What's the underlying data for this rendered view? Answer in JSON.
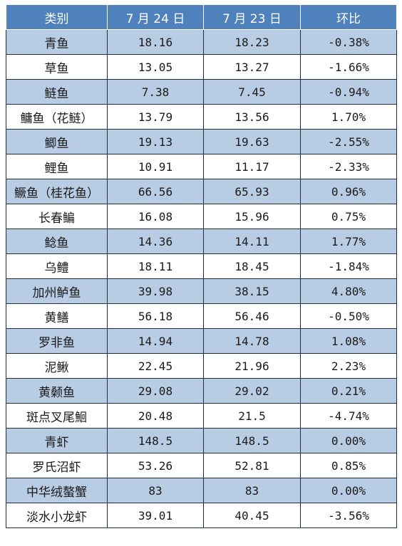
{
  "table": {
    "headers": [
      "类别",
      "7 月 24 日",
      "7 月 23 日",
      "环比"
    ],
    "rows": [
      [
        "青鱼",
        "18.16",
        "18.23",
        "-0.38%"
      ],
      [
        "草鱼",
        "13.05",
        "13.27",
        "-1.66%"
      ],
      [
        "鲢鱼",
        "7.38",
        "7.45",
        "-0.94%"
      ],
      [
        "鳙鱼（花鲢）",
        "13.79",
        "13.56",
        "1.70%"
      ],
      [
        "鲫鱼",
        "19.13",
        "19.63",
        "-2.55%"
      ],
      [
        "鲤鱼",
        "10.91",
        "11.17",
        "-2.33%"
      ],
      [
        "鳜鱼（桂花鱼）",
        "66.56",
        "65.93",
        "0.96%"
      ],
      [
        "长春鳊",
        "16.08",
        "15.96",
        "0.75%"
      ],
      [
        "鲶鱼",
        "14.36",
        "14.11",
        "1.77%"
      ],
      [
        "乌鳢",
        "18.11",
        "18.45",
        "-1.84%"
      ],
      [
        "加州鲈鱼",
        "39.98",
        "38.15",
        "4.80%"
      ],
      [
        "黄鳝",
        "56.18",
        "56.46",
        "-0.50%"
      ],
      [
        "罗非鱼",
        "14.94",
        "14.78",
        "1.08%"
      ],
      [
        "泥鳅",
        "22.45",
        "21.96",
        "2.23%"
      ],
      [
        "黄颡鱼",
        "29.08",
        "29.02",
        "0.21%"
      ],
      [
        "斑点叉尾鮰",
        "20.48",
        "21.5",
        "-4.74%"
      ],
      [
        "青虾",
        "148.5",
        "148.5",
        "0.00%"
      ],
      [
        "罗氏沼虾",
        "53.26",
        "52.81",
        "0.85%"
      ],
      [
        "中华绒螯蟹",
        "83",
        "83",
        "0.00%"
      ],
      [
        "淡水小龙虾",
        "39.01",
        "40.45",
        "-3.56%"
      ]
    ]
  },
  "colors": {
    "header_bg": "#4f81bd",
    "header_text": "#ffffff",
    "band_row_bg": "#b8cce4",
    "plain_row_bg": "#ffffff",
    "border": "#1f2d3d"
  }
}
